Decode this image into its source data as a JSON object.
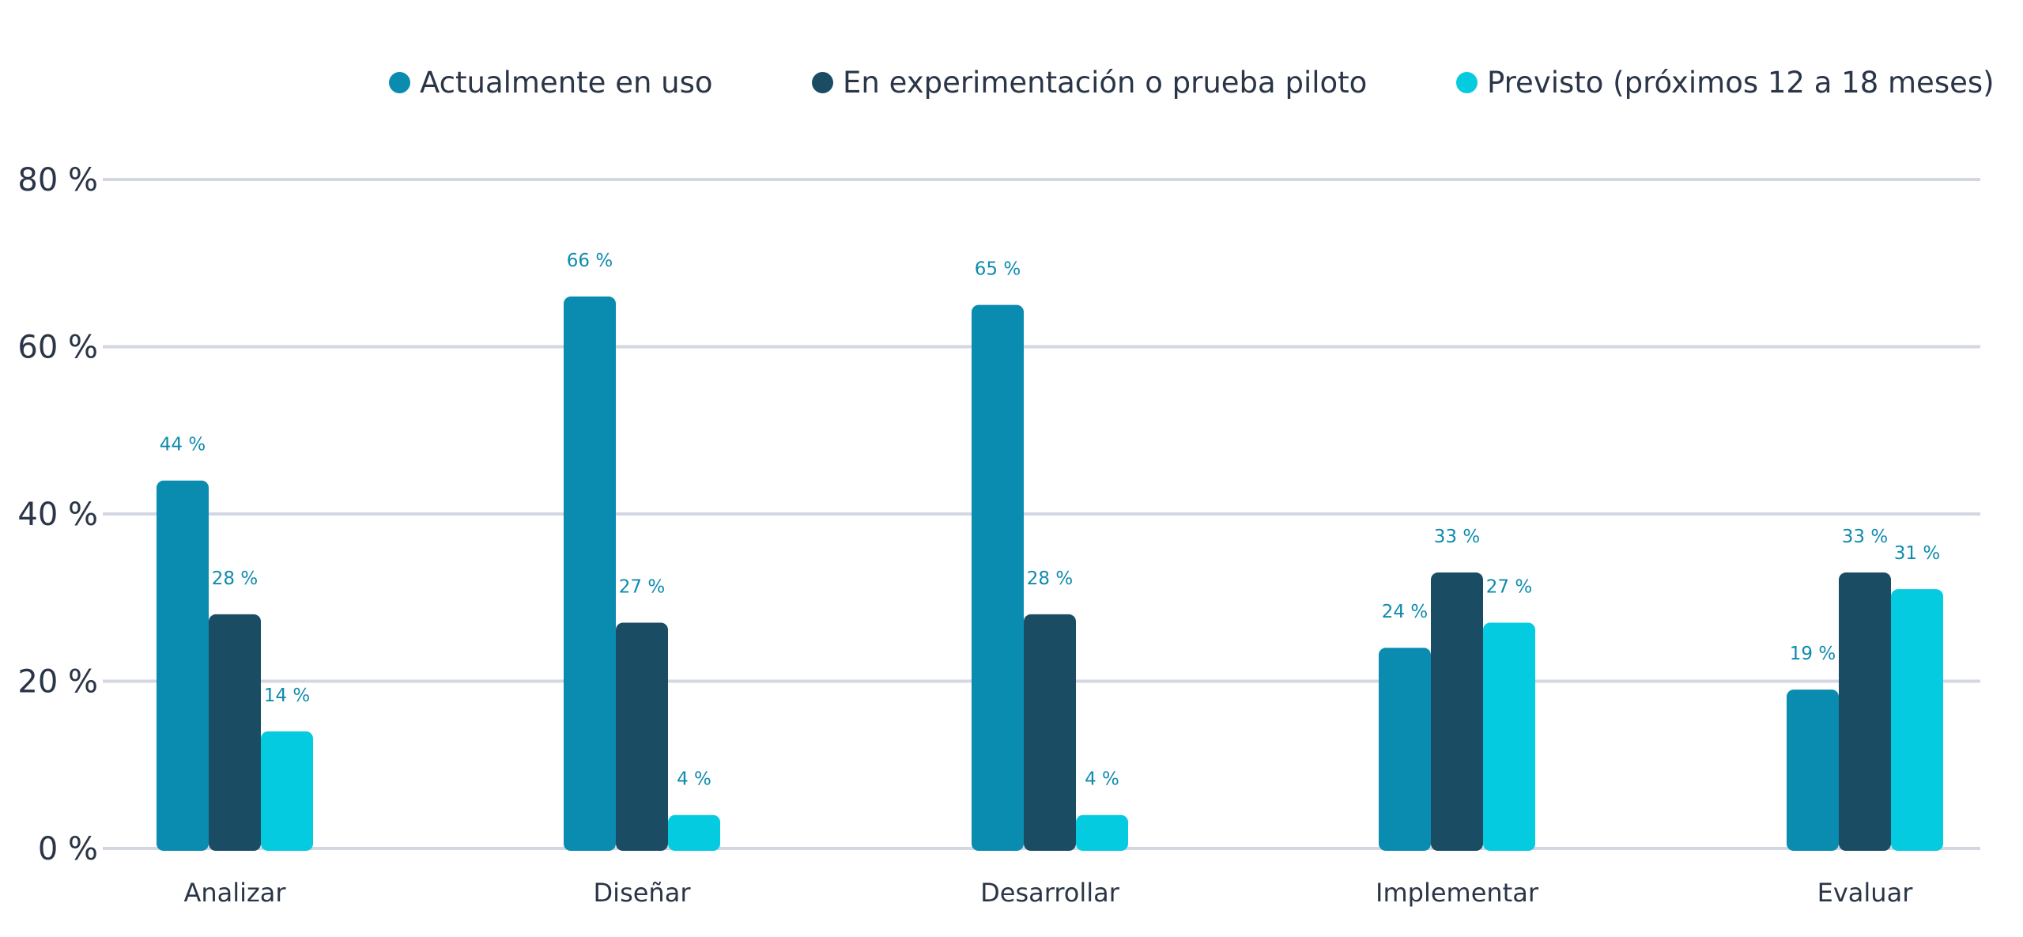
{
  "chart_data": {
    "type": "bar",
    "title": "",
    "xlabel": "",
    "ylabel": "",
    "ylim": [
      0,
      80
    ],
    "yticks": [
      0,
      20,
      40,
      60,
      80
    ],
    "ytick_labels": [
      "0 %",
      "20 %",
      "40 %",
      "60 %",
      "80 %"
    ],
    "grid": true,
    "legend_position": "top",
    "categories": [
      "Analizar",
      "Diseñar",
      "Desarrollar",
      "Implementar",
      "Evaluar"
    ],
    "series": [
      {
        "name": "Actualmente en uso",
        "color": "#0a8bb0",
        "values": [
          44,
          66,
          65,
          24,
          19
        ],
        "labels": [
          "44 %",
          "66 %",
          "65 %",
          "24 %",
          "19 %"
        ]
      },
      {
        "name": "En experimentación o prueba piloto",
        "color": "#1a4d64",
        "values": [
          28,
          27,
          28,
          33,
          33
        ],
        "labels": [
          "28 %",
          "27 %",
          "28 %",
          "33 %",
          "33 %"
        ]
      },
      {
        "name": "Previsto (próximos 12 a 18 meses)",
        "color": "#05cbe0",
        "values": [
          14,
          4,
          4,
          27,
          31
        ],
        "labels": [
          "14 %",
          "4 %",
          "4 %",
          "27 %",
          "31 %"
        ]
      }
    ],
    "colors": {
      "gridline": "#d3d7e2",
      "axis_text": "#2a3547",
      "data_label": "#0f8bae"
    }
  }
}
